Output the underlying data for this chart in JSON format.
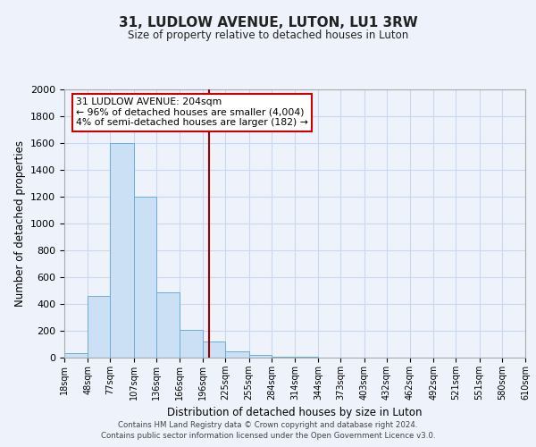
{
  "title": "31, LUDLOW AVENUE, LUTON, LU1 3RW",
  "subtitle": "Size of property relative to detached houses in Luton",
  "xlabel": "Distribution of detached houses by size in Luton",
  "ylabel": "Number of detached properties",
  "bin_labels": [
    "18sqm",
    "48sqm",
    "77sqm",
    "107sqm",
    "136sqm",
    "166sqm",
    "196sqm",
    "225sqm",
    "255sqm",
    "284sqm",
    "314sqm",
    "344sqm",
    "373sqm",
    "403sqm",
    "432sqm",
    "462sqm",
    "492sqm",
    "521sqm",
    "551sqm",
    "580sqm",
    "610sqm"
  ],
  "bin_edges": [
    18,
    48,
    77,
    107,
    136,
    166,
    196,
    225,
    255,
    284,
    314,
    344,
    373,
    403,
    432,
    462,
    492,
    521,
    551,
    580,
    610
  ],
  "bar_heights": [
    35,
    460,
    1600,
    1200,
    490,
    210,
    120,
    45,
    20,
    10,
    5,
    2,
    0,
    0,
    0,
    0,
    0,
    0,
    0,
    0
  ],
  "bar_color": "#cce0f5",
  "bar_edge_color": "#6aaed6",
  "vline_x": 204,
  "vline_color": "#990000",
  "ylim": [
    0,
    2000
  ],
  "yticks": [
    0,
    200,
    400,
    600,
    800,
    1000,
    1200,
    1400,
    1600,
    1800,
    2000
  ],
  "annotation_title": "31 LUDLOW AVENUE: 204sqm",
  "annotation_line1": "← 96% of detached houses are smaller (4,004)",
  "annotation_line2": "4% of semi-detached houses are larger (182) →",
  "annotation_box_color": "#ffffff",
  "annotation_box_edge_color": "#cc0000",
  "grid_color": "#c8d8ee",
  "background_color": "#eef2fb",
  "footer_line1": "Contains HM Land Registry data © Crown copyright and database right 2024.",
  "footer_line2": "Contains public sector information licensed under the Open Government Licence v3.0."
}
